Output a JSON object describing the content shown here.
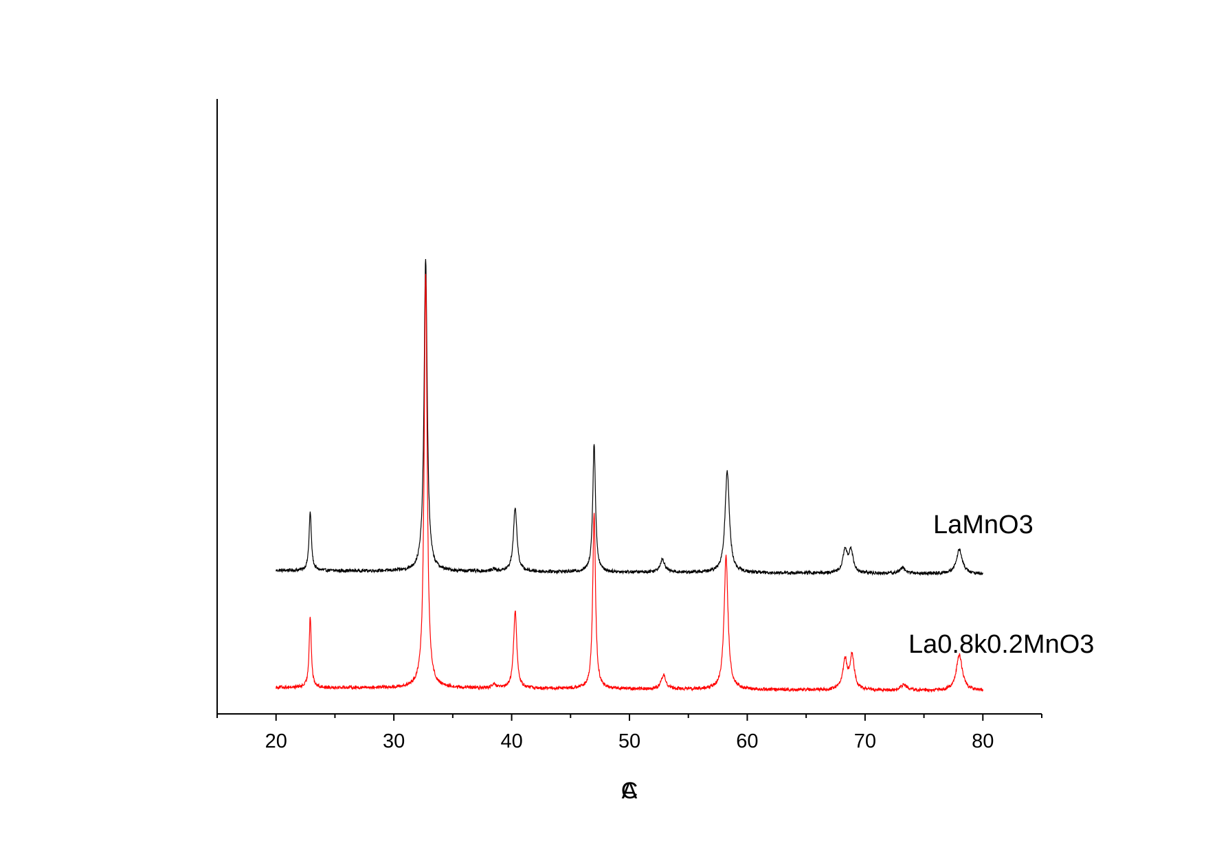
{
  "chart_data": {
    "type": "line",
    "title": "",
    "xlabel": "",
    "ylabel": "",
    "xlim": [
      15,
      85
    ],
    "x_ticks": [
      20,
      30,
      40,
      50,
      60,
      70,
      80
    ],
    "x_minor_ticks": [
      15,
      25,
      35,
      45,
      55,
      65,
      75,
      85
    ],
    "y_ticks": [],
    "grid": false,
    "legend": "none",
    "axis_glyphs": [
      "C",
      "A"
    ],
    "x_range": [
      20,
      80
    ],
    "series": [
      {
        "name": "LaMnO3",
        "color": "#000000",
        "baseline": 1.0,
        "peaks": [
          {
            "x": 22.9,
            "height": 0.5,
            "width": 0.12
          },
          {
            "x": 32.7,
            "height": 2.68,
            "width": 0.16
          },
          {
            "x": 38.5,
            "height": 0.02,
            "width": 0.2
          },
          {
            "x": 40.3,
            "height": 0.55,
            "width": 0.18
          },
          {
            "x": 47.0,
            "height": 1.1,
            "width": 0.14
          },
          {
            "x": 52.8,
            "height": 0.11,
            "width": 0.25
          },
          {
            "x": 58.3,
            "height": 0.87,
            "width": 0.22
          },
          {
            "x": 68.3,
            "height": 0.19,
            "width": 0.22
          },
          {
            "x": 68.8,
            "height": 0.19,
            "width": 0.22
          },
          {
            "x": 73.2,
            "height": 0.05,
            "width": 0.3
          },
          {
            "x": 78.0,
            "height": 0.21,
            "width": 0.3
          }
        ]
      },
      {
        "name": "La0.8k0.2MnO3",
        "color": "#ff0000",
        "baseline": 0.0,
        "peaks": [
          {
            "x": 22.9,
            "height": 0.61,
            "width": 0.11
          },
          {
            "x": 32.7,
            "height": 3.55,
            "width": 0.15
          },
          {
            "x": 38.5,
            "height": 0.03,
            "width": 0.2
          },
          {
            "x": 40.3,
            "height": 0.67,
            "width": 0.16
          },
          {
            "x": 47.0,
            "height": 1.51,
            "width": 0.14
          },
          {
            "x": 52.9,
            "height": 0.12,
            "width": 0.24
          },
          {
            "x": 58.2,
            "height": 1.14,
            "width": 0.2
          },
          {
            "x": 68.3,
            "height": 0.25,
            "width": 0.22
          },
          {
            "x": 68.9,
            "height": 0.29,
            "width": 0.22
          },
          {
            "x": 73.3,
            "height": 0.05,
            "width": 0.3
          },
          {
            "x": 78.0,
            "height": 0.31,
            "width": 0.3
          }
        ]
      }
    ]
  }
}
